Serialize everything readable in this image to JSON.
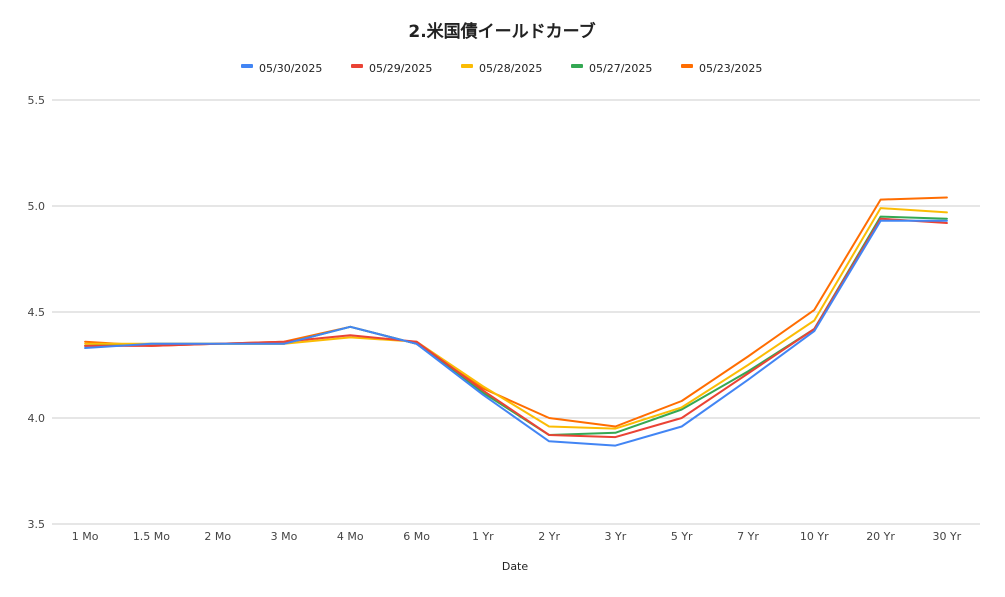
{
  "chart_data": {
    "type": "line",
    "title": "2.米国債イールドカーブ",
    "xlabel": "Date",
    "ylabel": "",
    "categories": [
      "1 Mo",
      "1.5 Mo",
      "2 Mo",
      "3 Mo",
      "4 Mo",
      "6 Mo",
      "1 Yr",
      "2 Yr",
      "3 Yr",
      "5 Yr",
      "7 Yr",
      "10 Yr",
      "20 Yr",
      "30 Yr"
    ],
    "ylim": [
      3.5,
      5.5
    ],
    "yticks": [
      "3.5",
      "4.0",
      "4.5",
      "5.0",
      "5.5"
    ],
    "grid": true,
    "legend_position": "top",
    "series": [
      {
        "name": "05/30/2025",
        "color": "#4285f4",
        "values": [
          4.33,
          4.35,
          4.35,
          4.35,
          4.43,
          4.35,
          4.11,
          3.89,
          3.87,
          3.96,
          4.18,
          4.41,
          4.93,
          4.93
        ]
      },
      {
        "name": "05/29/2025",
        "color": "#ea4335",
        "values": [
          4.34,
          4.34,
          4.35,
          4.36,
          4.39,
          4.36,
          4.13,
          3.92,
          3.91,
          4.0,
          4.21,
          4.42,
          4.94,
          4.92
        ]
      },
      {
        "name": "05/28/2025",
        "color": "#fbbc04",
        "values": [
          4.35,
          4.35,
          4.35,
          4.35,
          4.38,
          4.36,
          4.15,
          3.96,
          3.95,
          4.05,
          4.25,
          4.46,
          4.99,
          4.97
        ]
      },
      {
        "name": "05/27/2025",
        "color": "#34a853",
        "values": [
          4.34,
          4.35,
          4.35,
          4.35,
          4.43,
          4.35,
          4.12,
          3.92,
          3.93,
          4.04,
          4.22,
          4.42,
          4.95,
          4.94
        ]
      },
      {
        "name": "05/23/2025",
        "color": "#ff6d01",
        "values": [
          4.36,
          4.34,
          4.35,
          4.36,
          4.43,
          4.35,
          4.14,
          4.0,
          3.96,
          4.08,
          4.29,
          4.51,
          5.03,
          5.04
        ]
      }
    ]
  }
}
